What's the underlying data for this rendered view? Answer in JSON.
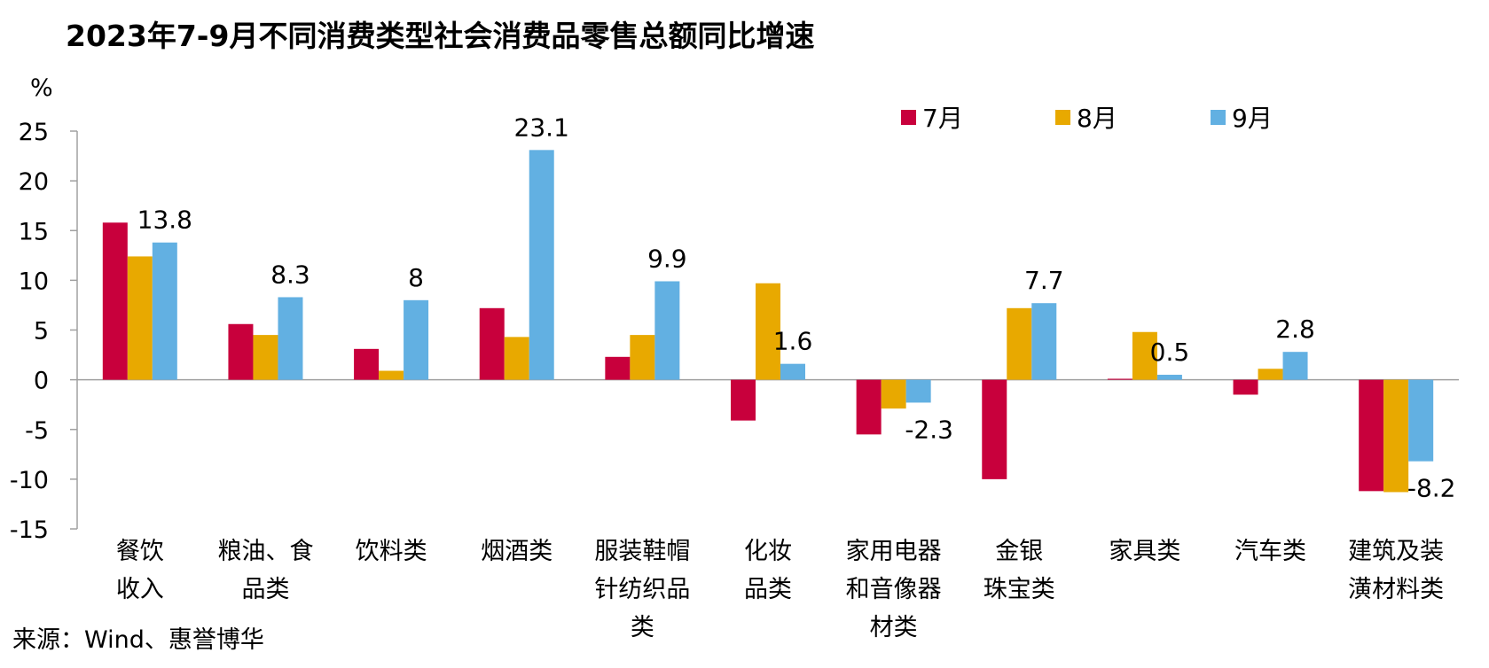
{
  "title": "2023年7-9月不同消费类型社会消费品零售总额同比增速",
  "source": "来源：Wind、惠誉博华",
  "chart_data": {
    "type": "bar",
    "unit": "%",
    "ylim": [
      -15,
      25
    ],
    "yticks": [
      25,
      20,
      15,
      10,
      5,
      0,
      -5,
      -10,
      -15
    ],
    "categories": [
      [
        "餐饮",
        "收入"
      ],
      [
        "粮油、食",
        "品类"
      ],
      [
        "饮料类"
      ],
      [
        "烟酒类"
      ],
      [
        "服装鞋帽",
        "针纺织品",
        "类"
      ],
      [
        "化妆",
        "品类"
      ],
      [
        "家用电器",
        "和音像器",
        "材类"
      ],
      [
        "金银",
        "珠宝类"
      ],
      [
        "家具类"
      ],
      [
        "汽车类"
      ],
      [
        "建筑及装",
        "潢材料类"
      ]
    ],
    "series": [
      {
        "name": "7月",
        "color": "#c8003c",
        "values": [
          15.8,
          5.6,
          3.1,
          7.2,
          2.3,
          -4.1,
          -5.5,
          -10.0,
          0.1,
          -1.5,
          -11.2
        ]
      },
      {
        "name": "8月",
        "color": "#e8a900",
        "values": [
          12.4,
          4.5,
          0.9,
          4.3,
          4.5,
          9.7,
          -2.9,
          7.2,
          4.8,
          1.1,
          -11.3
        ]
      },
      {
        "name": "9月",
        "color": "#62b0e2",
        "values": [
          13.8,
          8.3,
          8.0,
          23.1,
          9.9,
          1.6,
          -2.3,
          7.7,
          0.5,
          2.8,
          -8.2
        ]
      }
    ],
    "data_labels": [
      "13.8",
      "8.3",
      "8",
      "23.1",
      "9.9",
      "1.6",
      "-2.3",
      "7.7",
      "0.5",
      "2.8",
      "-8.2"
    ],
    "legend_position": "top-right",
    "grid": false
  }
}
